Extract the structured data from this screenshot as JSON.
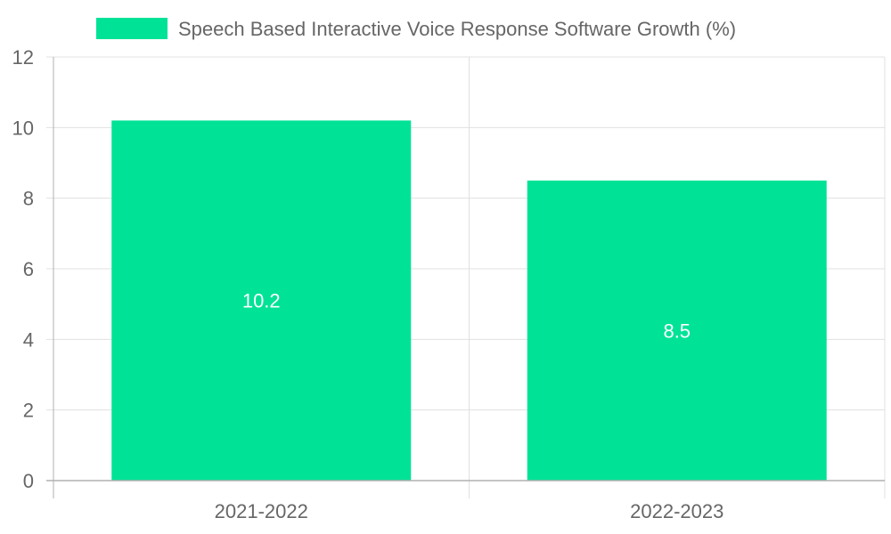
{
  "chart_data": {
    "type": "bar",
    "title": "",
    "xlabel": "",
    "ylabel": "",
    "categories": [
      "2021-2022",
      "2022-2023"
    ],
    "series": [
      {
        "name": "Speech Based Interactive Voice Response Software Growth (%)",
        "values": [
          10.2,
          8.5
        ],
        "color": "#00e396"
      }
    ],
    "data_labels": [
      "10.2",
      "8.5"
    ],
    "y_ticks": [
      "0",
      "2",
      "4",
      "6",
      "8",
      "10",
      "12"
    ],
    "ylim": [
      0,
      12
    ],
    "grid": true,
    "legend_position": "top"
  },
  "colors": {
    "grid": "#e0e0e0",
    "axis": "#b0b0b0",
    "text": "#666666"
  }
}
